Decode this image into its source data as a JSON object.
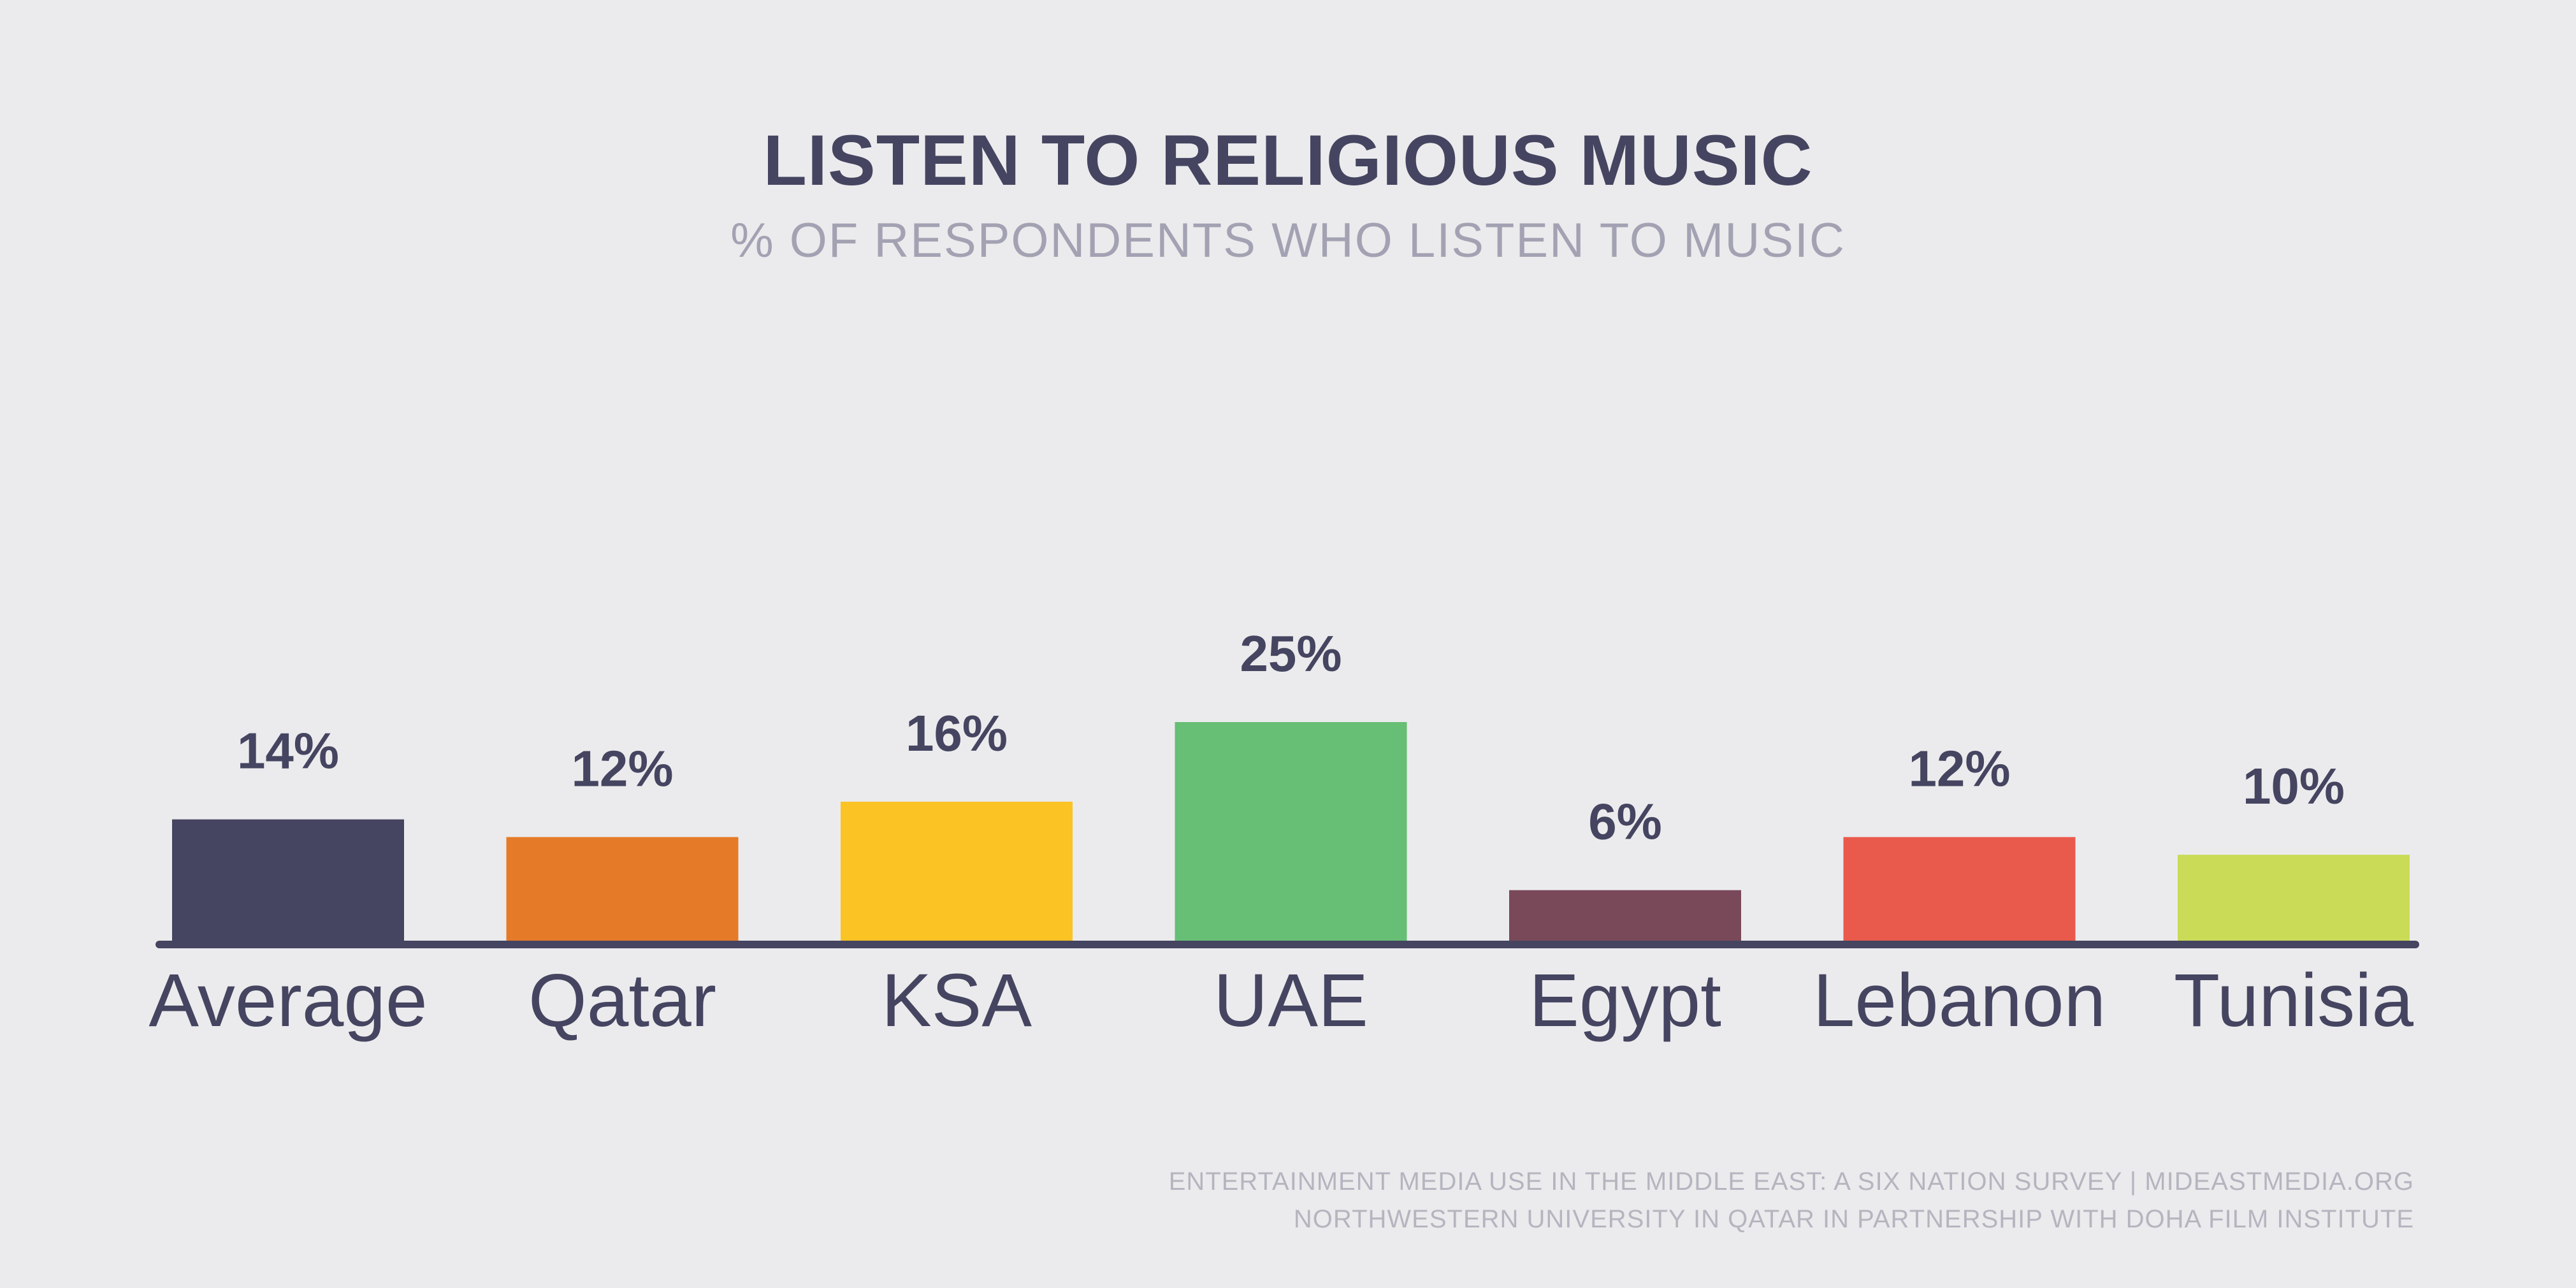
{
  "chart_data": {
    "type": "bar",
    "title": "LISTEN TO RELIGIOUS MUSIC",
    "subtitle": "% OF RESPONDENTS WHO LISTEN TO MUSIC",
    "categories": [
      "Average",
      "Qatar",
      "KSA",
      "UAE",
      "Egypt",
      "Lebanon",
      "Tunisia"
    ],
    "values": [
      14,
      12,
      16,
      25,
      6,
      12,
      10
    ],
    "value_labels": [
      "14%",
      "12%",
      "16%",
      "25%",
      "6%",
      "12%",
      "10%"
    ],
    "colors": [
      "#454561",
      "#e57a28",
      "#fcc324",
      "#67be75",
      "#7a4959",
      "#e9594c",
      "#cadb58"
    ],
    "unit": "%",
    "xlabel": "",
    "ylabel": "",
    "ylim": [
      0,
      25
    ],
    "grid": false,
    "legend": "none",
    "baseline_color": "#454561"
  },
  "footer": {
    "line1": "ENTERTAINMENT MEDIA USE IN THE MIDDLE EAST: A SIX NATION SURVEY | MIDEASTMEDIA.ORG",
    "line2": "NORTHWESTERN UNIVERSITY IN QATAR IN PARTNERSHIP WITH DOHA FILM INSTITUTE"
  }
}
